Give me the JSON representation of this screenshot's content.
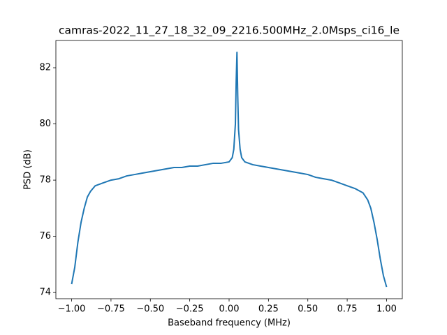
{
  "chart_data": {
    "type": "line",
    "title": "camras-2022_11_27_18_32_09_2216.500MHz_2.0Msps_ci16_le",
    "x_label": "Baseband frequency (MHz)",
    "y_label": "PSD (dB)",
    "color": "#1f77b4",
    "x": [
      -1.0,
      -0.98,
      -0.96,
      -0.94,
      -0.92,
      -0.9,
      -0.88,
      -0.85,
      -0.8,
      -0.75,
      -0.7,
      -0.65,
      -0.6,
      -0.55,
      -0.5,
      -0.45,
      -0.4,
      -0.35,
      -0.3,
      -0.25,
      -0.2,
      -0.15,
      -0.1,
      -0.05,
      0.0,
      0.02,
      0.03,
      0.04,
      0.045,
      0.05,
      0.055,
      0.06,
      0.07,
      0.08,
      0.1,
      0.15,
      0.2,
      0.25,
      0.3,
      0.35,
      0.4,
      0.45,
      0.5,
      0.55,
      0.6,
      0.65,
      0.7,
      0.75,
      0.8,
      0.85,
      0.88,
      0.9,
      0.92,
      0.94,
      0.96,
      0.98,
      1.0
    ],
    "values": [
      74.3,
      74.9,
      75.8,
      76.5,
      77.0,
      77.4,
      77.6,
      77.8,
      77.9,
      78.0,
      78.05,
      78.15,
      78.2,
      78.25,
      78.3,
      78.35,
      78.4,
      78.45,
      78.45,
      78.5,
      78.5,
      78.55,
      78.6,
      78.6,
      78.65,
      78.8,
      79.1,
      80.0,
      81.5,
      82.55,
      81.0,
      79.8,
      79.1,
      78.8,
      78.65,
      78.55,
      78.5,
      78.45,
      78.4,
      78.35,
      78.3,
      78.25,
      78.2,
      78.1,
      78.05,
      78.0,
      77.9,
      77.8,
      77.7,
      77.55,
      77.3,
      77.0,
      76.5,
      75.9,
      75.2,
      74.6,
      74.2
    ],
    "xlim": [
      -1.1,
      1.1
    ],
    "ylim": [
      73.78,
      82.97
    ],
    "xticks": [
      {
        "value": -1.0,
        "label": "−1.00"
      },
      {
        "value": -0.75,
        "label": "−0.75"
      },
      {
        "value": -0.5,
        "label": "−0.50"
      },
      {
        "value": -0.25,
        "label": "−0.25"
      },
      {
        "value": 0.0,
        "label": "0.00"
      },
      {
        "value": 0.25,
        "label": "0.25"
      },
      {
        "value": 0.5,
        "label": "0.50"
      },
      {
        "value": 0.75,
        "label": "0.75"
      },
      {
        "value": 1.0,
        "label": "1.00"
      }
    ],
    "yticks": [
      74,
      76,
      78,
      80,
      82
    ]
  }
}
